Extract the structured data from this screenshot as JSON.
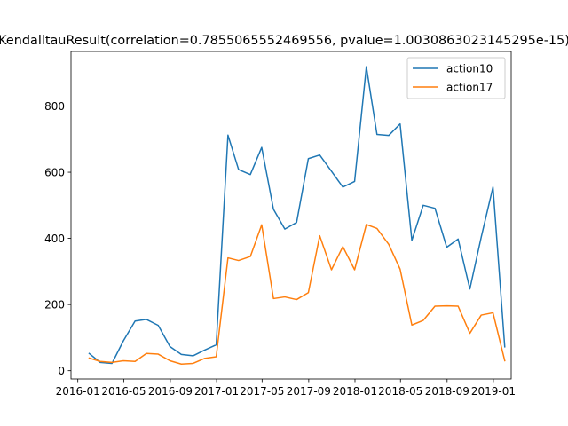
{
  "chart_data": {
    "type": "line",
    "title": "KendalltauResult(correlation=0.7855065552469556, pvalue=1.0030863023145295e-15)",
    "xlabel": "",
    "ylabel": "",
    "x": [
      "2016-01-31",
      "2016-02-29",
      "2016-03-31",
      "2016-04-30",
      "2016-05-31",
      "2016-06-30",
      "2016-07-31",
      "2016-08-31",
      "2016-09-30",
      "2016-10-31",
      "2016-11-30",
      "2016-12-31",
      "2017-01-31",
      "2017-02-28",
      "2017-03-31",
      "2017-04-30",
      "2017-05-31",
      "2017-06-30",
      "2017-07-31",
      "2017-08-31",
      "2017-09-30",
      "2017-10-31",
      "2017-11-30",
      "2017-12-31",
      "2018-01-31",
      "2018-02-28",
      "2018-03-31",
      "2018-04-30",
      "2018-05-31",
      "2018-06-30",
      "2018-07-31",
      "2018-08-31",
      "2018-09-30",
      "2018-10-31",
      "2018-11-30",
      "2018-12-31",
      "2019-01-31"
    ],
    "x_ticks": [
      "2016-01",
      "2016-05",
      "2016-09",
      "2017-01",
      "2017-05",
      "2017-09",
      "2018-01",
      "2018-05",
      "2018-09",
      "2019-01"
    ],
    "xlim": [
      "2015-12-14",
      "2019-02-17"
    ],
    "ylim": [
      -25,
      965
    ],
    "y_ticks": [
      0,
      200,
      400,
      600,
      800
    ],
    "grid": false,
    "legend_position": "upper right",
    "series": [
      {
        "name": "action10",
        "color": "#1f77b4",
        "values": [
          52,
          25,
          22,
          90,
          150,
          155,
          137,
          73,
          49,
          45,
          62,
          78,
          712,
          608,
          593,
          675,
          488,
          428,
          448,
          641,
          652,
          603,
          555,
          572,
          919,
          714,
          711,
          746,
          394,
          500,
          491,
          373,
          398,
          247,
          404,
          555,
          72
        ]
      },
      {
        "name": "action17",
        "color": "#ff7f0e",
        "values": [
          38,
          28,
          25,
          30,
          28,
          52,
          50,
          30,
          20,
          22,
          37,
          42,
          341,
          333,
          345,
          441,
          218,
          223,
          215,
          236,
          408,
          305,
          375,
          305,
          442,
          430,
          382,
          307,
          138,
          152,
          195,
          196,
          195,
          113,
          168,
          175,
          30
        ]
      }
    ]
  }
}
